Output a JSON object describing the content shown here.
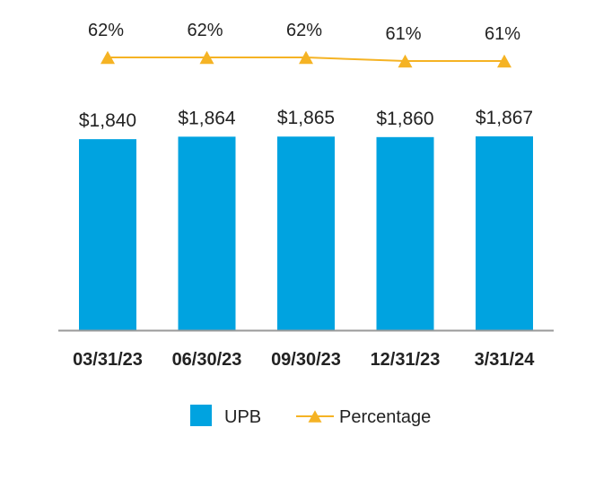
{
  "chart_data": {
    "type": "bar",
    "categories": [
      "03/31/23",
      "06/30/23",
      "09/30/23",
      "12/31/23",
      "3/31/24"
    ],
    "series": [
      {
        "name": "UPB",
        "type": "bar",
        "values": [
          1840,
          1864,
          1865,
          1860,
          1867
        ],
        "labels": [
          "$1,840",
          "$1,864",
          "$1,865",
          "$1,860",
          "$1,867"
        ],
        "color": "#00a3e0"
      },
      {
        "name": "Percentage",
        "type": "line",
        "values": [
          62,
          62,
          62,
          61,
          61
        ],
        "labels": [
          "62%",
          "62%",
          "62%",
          "61%",
          "61%"
        ],
        "color": "#f5b324"
      }
    ],
    "legend": {
      "placement": "bottom"
    },
    "grid": false,
    "colors": {
      "axis": "#9a9a9a",
      "text": "#222222"
    }
  }
}
